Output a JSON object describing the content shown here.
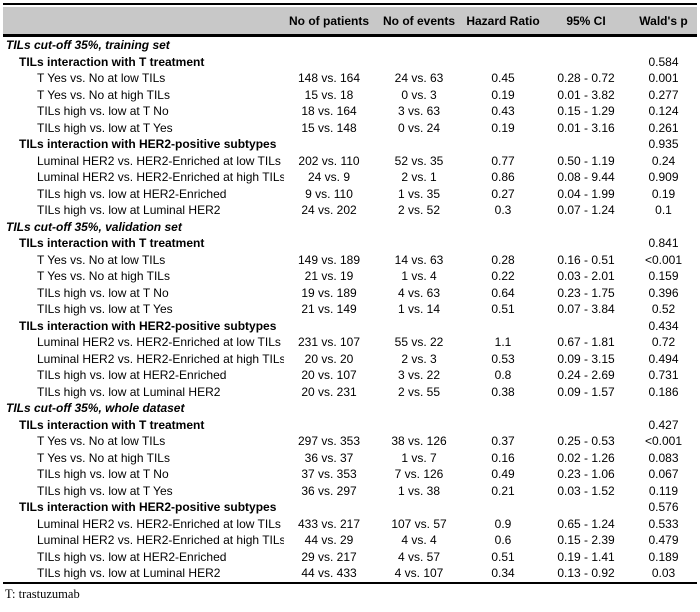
{
  "header": {
    "columns": [
      "",
      "No of patients",
      "No of events",
      "Hazard Ratio",
      "95% CI",
      "Wald's p"
    ]
  },
  "table": {
    "rows": [
      {
        "type": "section",
        "label": "TILs cut-off 35%, training set",
        "patients": "",
        "events": "",
        "hr": "",
        "ci": "",
        "p": ""
      },
      {
        "type": "subsection",
        "label": "TILs interaction with T treatment",
        "patients": "",
        "events": "",
        "hr": "",
        "ci": "",
        "p": "0.584"
      },
      {
        "type": "data",
        "label": "T Yes vs. No at low TILs",
        "patients": "148 vs. 164",
        "events": "24 vs. 63",
        "hr": "0.45",
        "ci": "0.28 - 0.72",
        "p": "0.001"
      },
      {
        "type": "data",
        "label": "T Yes vs. No at high TILs",
        "patients": "15 vs. 18",
        "events": "0 vs. 3",
        "hr": "0.19",
        "ci": "0.01 - 3.82",
        "p": "0.277"
      },
      {
        "type": "data",
        "label": "TILs high vs. low at T No",
        "patients": "18 vs. 164",
        "events": "3 vs. 63",
        "hr": "0.43",
        "ci": "0.15 - 1.29",
        "p": "0.124"
      },
      {
        "type": "data",
        "label": "TILs high vs. low at T Yes",
        "patients": "15 vs. 148",
        "events": "0 vs. 24",
        "hr": "0.19",
        "ci": "0.01 - 3.16",
        "p": "0.261"
      },
      {
        "type": "subsection",
        "label": "TILs interaction with HER2-positive subtypes",
        "patients": "",
        "events": "",
        "hr": "",
        "ci": "",
        "p": "0.935"
      },
      {
        "type": "data",
        "label": "Luminal HER2 vs. HER2-Enriched at low TILs",
        "patients": "202 vs. 110",
        "events": "52 vs. 35",
        "hr": "0.77",
        "ci": "0.50 - 1.19",
        "p": "0.24"
      },
      {
        "type": "data",
        "label": "Luminal HER2 vs. HER2-Enriched at high TILs",
        "patients": "24 vs. 9",
        "events": "2 vs. 1",
        "hr": "0.86",
        "ci": "0.08 - 9.44",
        "p": "0.909"
      },
      {
        "type": "data",
        "label": "TILs high vs. low at HER2-Enriched",
        "patients": "9 vs. 110",
        "events": "1 vs. 35",
        "hr": "0.27",
        "ci": "0.04 - 1.99",
        "p": "0.19"
      },
      {
        "type": "data",
        "label": "TILs high vs. low at Luminal HER2",
        "patients": "24 vs. 202",
        "events": "2 vs. 52",
        "hr": "0.3",
        "ci": "0.07 - 1.24",
        "p": "0.1"
      },
      {
        "type": "section",
        "label": "TILs cut-off 35%, validation set",
        "patients": "",
        "events": "",
        "hr": "",
        "ci": "",
        "p": ""
      },
      {
        "type": "subsection",
        "label": "TILs interaction with T treatment",
        "patients": "",
        "events": "",
        "hr": "",
        "ci": "",
        "p": "0.841"
      },
      {
        "type": "data",
        "label": "T Yes vs. No at low TILs",
        "patients": "149 vs. 189",
        "events": "14 vs. 63",
        "hr": "0.28",
        "ci": "0.16 - 0.51",
        "p": "<0.001"
      },
      {
        "type": "data",
        "label": "T Yes vs. No at high TILs",
        "patients": "21 vs. 19",
        "events": "1 vs. 4",
        "hr": "0.22",
        "ci": "0.03 - 2.01",
        "p": "0.159"
      },
      {
        "type": "data",
        "label": "TILs high vs. low at T No",
        "patients": "19 vs. 189",
        "events": "4 vs. 63",
        "hr": "0.64",
        "ci": "0.23 - 1.75",
        "p": "0.396"
      },
      {
        "type": "data",
        "label": "TILs high vs. low at T Yes",
        "patients": "21 vs. 149",
        "events": "1 vs. 14",
        "hr": "0.51",
        "ci": "0.07 - 3.84",
        "p": "0.52"
      },
      {
        "type": "subsection",
        "label": "TILs interaction with HER2-positive subtypes",
        "patients": "",
        "events": "",
        "hr": "",
        "ci": "",
        "p": "0.434"
      },
      {
        "type": "data",
        "label": "Luminal HER2 vs. HER2-Enriched at low TILs",
        "patients": "231 vs. 107",
        "events": "55 vs. 22",
        "hr": "1.1",
        "ci": "0.67 - 1.81",
        "p": "0.72"
      },
      {
        "type": "data",
        "label": "Luminal HER2 vs. HER2-Enriched at high TILs",
        "patients": "20 vs. 20",
        "events": "2 vs. 3",
        "hr": "0.53",
        "ci": "0.09 - 3.15",
        "p": "0.494"
      },
      {
        "type": "data",
        "label": "TILs high vs. low at HER2-Enriched",
        "patients": "20 vs. 107",
        "events": "3 vs. 22",
        "hr": "0.8",
        "ci": "0.24 - 2.69",
        "p": "0.731"
      },
      {
        "type": "data",
        "label": "TILs high vs. low at Luminal HER2",
        "patients": "20 vs. 231",
        "events": "2 vs. 55",
        "hr": "0.38",
        "ci": "0.09 - 1.57",
        "p": "0.186"
      },
      {
        "type": "section",
        "label": "TILs cut-off 35%, whole dataset",
        "patients": "",
        "events": "",
        "hr": "",
        "ci": "",
        "p": ""
      },
      {
        "type": "subsection",
        "label": "TILs interaction with T treatment",
        "patients": "",
        "events": "",
        "hr": "",
        "ci": "",
        "p": "0.427"
      },
      {
        "type": "data",
        "label": "T Yes vs. No at low TILs",
        "patients": "297 vs. 353",
        "events": "38 vs. 126",
        "hr": "0.37",
        "ci": "0.25 - 0.53",
        "p": "<0.001"
      },
      {
        "type": "data",
        "label": "T Yes vs. No at high TILs",
        "patients": "36 vs. 37",
        "events": "1 vs. 7",
        "hr": "0.16",
        "ci": "0.02 - 1.26",
        "p": "0.083"
      },
      {
        "type": "data",
        "label": "TILs high vs. low at T No",
        "patients": "37 vs. 353",
        "events": "7 vs. 126",
        "hr": "0.49",
        "ci": "0.23 - 1.06",
        "p": "0.067"
      },
      {
        "type": "data",
        "label": "TILs high vs. low at T Yes",
        "patients": "36 vs. 297",
        "events": "1 vs. 38",
        "hr": "0.21",
        "ci": "0.03 - 1.52",
        "p": "0.119"
      },
      {
        "type": "subsection",
        "label": "TILs interaction with HER2-positive subtypes",
        "patients": "",
        "events": "",
        "hr": "",
        "ci": "",
        "p": "0.576"
      },
      {
        "type": "data",
        "label": "Luminal HER2 vs. HER2-Enriched at low TILs",
        "patients": "433 vs. 217",
        "events": "107 vs. 57",
        "hr": "0.9",
        "ci": "0.65 - 1.24",
        "p": "0.533"
      },
      {
        "type": "data",
        "label": "Luminal HER2 vs. HER2-Enriched at high TILs",
        "patients": "44 vs. 29",
        "events": "4 vs. 4",
        "hr": "0.6",
        "ci": "0.15 - 2.39",
        "p": "0.479"
      },
      {
        "type": "data",
        "label": "TILs high vs. low at HER2-Enriched",
        "patients": "29 vs. 217",
        "events": "4 vs. 57",
        "hr": "0.51",
        "ci": "0.19 - 1.41",
        "p": "0.189"
      },
      {
        "type": "data",
        "label": "TILs high vs. low at Luminal HER2",
        "patients": "44 vs. 433",
        "events": "4 vs. 107",
        "hr": "0.34",
        "ci": "0.13 - 0.92",
        "p": "0.03"
      }
    ]
  },
  "footnote": "T: trastuzumab",
  "colors": {
    "header_bg": "#c8c8c8",
    "border": "#000000",
    "text": "#000000"
  }
}
